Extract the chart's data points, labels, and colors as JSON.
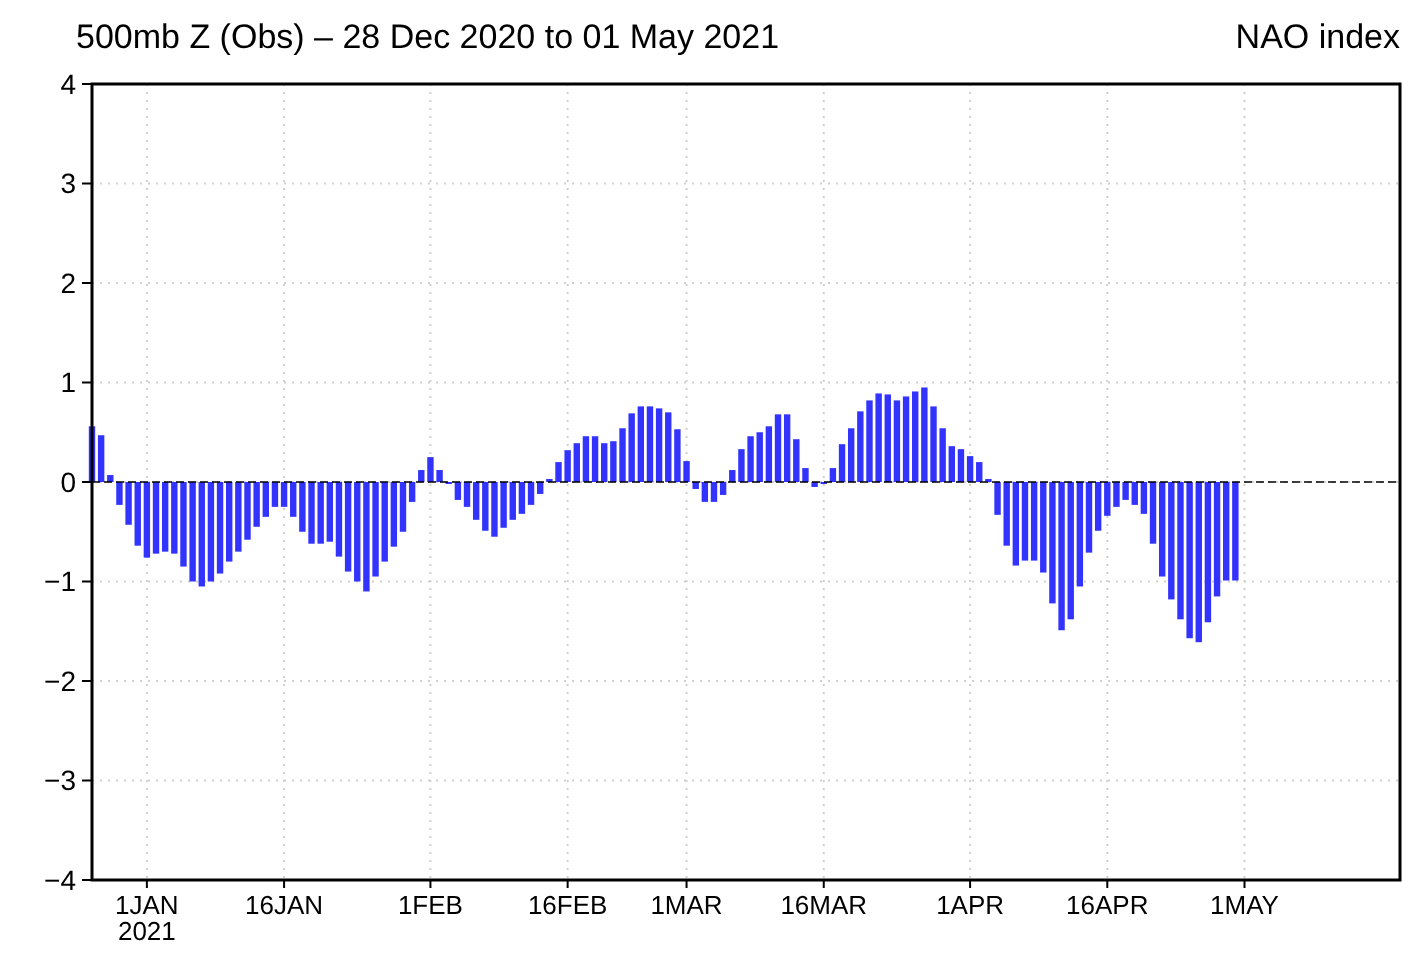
{
  "chart_data": {
    "type": "bar",
    "title": "500mb Z (Obs) – 28 Dec 2020 to 01 May 2021",
    "subtitle": "NAO index",
    "x": [
      "2020-12-26",
      "2020-12-27",
      "2020-12-28",
      "2020-12-29",
      "2020-12-30",
      "2020-12-31",
      "2021-01-01",
      "2021-01-02",
      "2021-01-03",
      "2021-01-04",
      "2021-01-05",
      "2021-01-06",
      "2021-01-07",
      "2021-01-08",
      "2021-01-09",
      "2021-01-10",
      "2021-01-11",
      "2021-01-12",
      "2021-01-13",
      "2021-01-14",
      "2021-01-15",
      "2021-01-16",
      "2021-01-17",
      "2021-01-18",
      "2021-01-19",
      "2021-01-20",
      "2021-01-21",
      "2021-01-22",
      "2021-01-23",
      "2021-01-24",
      "2021-01-25",
      "2021-01-26",
      "2021-01-27",
      "2021-01-28",
      "2021-01-29",
      "2021-01-30",
      "2021-01-31",
      "2021-02-01",
      "2021-02-02",
      "2021-02-03",
      "2021-02-04",
      "2021-02-05",
      "2021-02-06",
      "2021-02-07",
      "2021-02-08",
      "2021-02-09",
      "2021-02-10",
      "2021-02-11",
      "2021-02-12",
      "2021-02-13",
      "2021-02-14",
      "2021-02-15",
      "2021-02-16",
      "2021-02-17",
      "2021-02-18",
      "2021-02-19",
      "2021-02-20",
      "2021-02-21",
      "2021-02-22",
      "2021-02-23",
      "2021-02-24",
      "2021-02-25",
      "2021-02-26",
      "2021-02-27",
      "2021-02-28",
      "2021-03-01",
      "2021-03-02",
      "2021-03-03",
      "2021-03-04",
      "2021-03-05",
      "2021-03-06",
      "2021-03-07",
      "2021-03-08",
      "2021-03-09",
      "2021-03-10",
      "2021-03-11",
      "2021-03-12",
      "2021-03-13",
      "2021-03-14",
      "2021-03-15",
      "2021-03-16",
      "2021-03-17",
      "2021-03-18",
      "2021-03-19",
      "2021-03-20",
      "2021-03-21",
      "2021-03-22",
      "2021-03-23",
      "2021-03-24",
      "2021-03-25",
      "2021-03-26",
      "2021-03-27",
      "2021-03-28",
      "2021-03-29",
      "2021-03-30",
      "2021-03-31",
      "2021-04-01",
      "2021-04-02",
      "2021-04-03",
      "2021-04-04",
      "2021-04-05",
      "2021-04-06",
      "2021-04-07",
      "2021-04-08",
      "2021-04-09",
      "2021-04-10",
      "2021-04-11",
      "2021-04-12",
      "2021-04-13",
      "2021-04-14",
      "2021-04-15",
      "2021-04-16",
      "2021-04-17",
      "2021-04-18",
      "2021-04-19",
      "2021-04-20",
      "2021-04-21",
      "2021-04-22",
      "2021-04-23",
      "2021-04-24",
      "2021-04-25",
      "2021-04-26",
      "2021-04-27",
      "2021-04-28",
      "2021-04-29",
      "2021-04-30"
    ],
    "values": [
      0.56,
      0.47,
      0.07,
      -0.23,
      -0.43,
      -0.64,
      -0.76,
      -0.72,
      -0.7,
      -0.72,
      -0.85,
      -1.0,
      -1.05,
      -1.0,
      -0.92,
      -0.8,
      -0.7,
      -0.58,
      -0.45,
      -0.35,
      -0.25,
      -0.25,
      -0.35,
      -0.5,
      -0.62,
      -0.62,
      -0.6,
      -0.75,
      -0.9,
      -1.0,
      -1.1,
      -0.95,
      -0.8,
      -0.65,
      -0.5,
      -0.2,
      0.12,
      0.25,
      0.12,
      -0.02,
      -0.18,
      -0.25,
      -0.38,
      -0.49,
      -0.55,
      -0.46,
      -0.38,
      -0.32,
      -0.23,
      -0.12,
      0.03,
      0.2,
      0.32,
      0.39,
      0.46,
      0.46,
      0.39,
      0.41,
      0.54,
      0.69,
      0.76,
      0.76,
      0.74,
      0.7,
      0.53,
      0.21,
      -0.07,
      -0.2,
      -0.2,
      -0.13,
      0.12,
      0.33,
      0.46,
      0.5,
      0.56,
      0.68,
      0.68,
      0.43,
      0.14,
      -0.05,
      -0.02,
      0.14,
      0.38,
      0.54,
      0.71,
      0.82,
      0.89,
      0.88,
      0.82,
      0.86,
      0.91,
      0.95,
      0.76,
      0.54,
      0.36,
      0.33,
      0.26,
      0.2,
      0.03,
      -0.33,
      -0.64,
      -0.84,
      -0.79,
      -0.79,
      -0.91,
      -1.22,
      -1.49,
      -1.38,
      -1.05,
      -0.71,
      -0.49,
      -0.34,
      -0.25,
      -0.18,
      -0.23,
      -0.32,
      -0.62,
      -0.95,
      -1.18,
      -1.38,
      -1.57,
      -1.61,
      -1.41,
      -1.15,
      -0.99,
      -0.99
    ],
    "color": "#3333ff",
    "xlim": [
      "2020-12-26",
      "2021-05-18"
    ],
    "xticks": [
      {
        "value": "2021-01-01",
        "label": "1JAN\n2021"
      },
      {
        "value": "2021-01-16",
        "label": "16JAN"
      },
      {
        "value": "2021-02-01",
        "label": "1FEB"
      },
      {
        "value": "2021-02-16",
        "label": "16FEB"
      },
      {
        "value": "2021-03-01",
        "label": "1MAR"
      },
      {
        "value": "2021-03-16",
        "label": "16MAR"
      },
      {
        "value": "2021-04-01",
        "label": "1APR"
      },
      {
        "value": "2021-04-16",
        "label": "16APR"
      },
      {
        "value": "2021-05-01",
        "label": "1MAY"
      }
    ],
    "ylim": [
      -4,
      4
    ],
    "yticks": [
      -4,
      -3,
      -2,
      -1,
      0,
      1,
      2,
      3,
      4
    ],
    "grid": true,
    "ref_lines": [
      {
        "axis": "y",
        "value": 0,
        "line_style": "dashed",
        "color": "#000000"
      }
    ]
  }
}
